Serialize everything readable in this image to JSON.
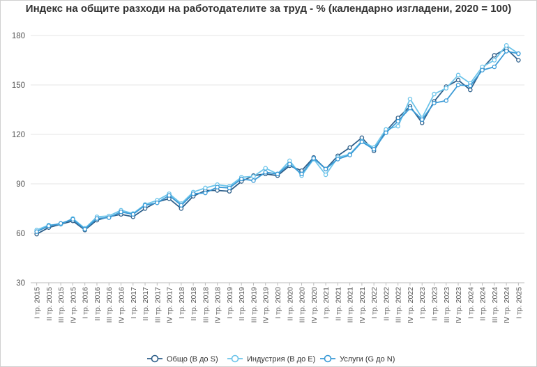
{
  "chart_data": {
    "type": "line",
    "title": "Индекс на общите разходи на работодателите за труд - %  (календарно изгладени, 2020 = 100)",
    "xlabel": "",
    "ylabel": "",
    "ylim": [
      30,
      180
    ],
    "yticks": [
      30,
      60,
      90,
      120,
      150,
      180
    ],
    "grid": true,
    "legend": "bottom",
    "categories": [
      "I тр. 2015",
      "II тр. 2015",
      "III тр. 2015",
      "IV тр. 2015",
      "I тр. 2016",
      "II тр. 2016",
      "III тр. 2016",
      "IV тр. 2016",
      "I тр. 2017",
      "II тр. 2017",
      "III тр. 2017",
      "IV тр. 2017",
      "I тр. 2018",
      "II тр. 2018",
      "III тр. 2018",
      "IV тр. 2018",
      "I тр. 2019",
      "II тр. 2019",
      "III тр. 2019",
      "IV тр. 2019",
      "I тр. 2020",
      "II тр. 2020",
      "III тр. 2020",
      "IV тр. 2020",
      "I тр. 2021",
      "II тр. 2021",
      "III тр. 2021",
      "IV тр. 2021",
      "I тр. 2022",
      "II тр. 2022",
      "III тр. 2022",
      "IV тр. 2022",
      "I тр. 2023",
      "II тр. 2023",
      "III тр. 2023",
      "IV тр. 2023",
      "I тр. 2024",
      "II тр. 2024",
      "III тр. 2024",
      "IV тр. 2024",
      "I тр. 2025"
    ],
    "series": [
      {
        "name": "Общо (B до S)",
        "color": "#2e5f8a",
        "values": [
          59.5,
          63.5,
          65.5,
          67.5,
          62,
          68,
          70,
          71.5,
          70,
          75,
          79,
          81,
          75,
          82.5,
          86,
          86,
          85.5,
          91.5,
          95,
          96,
          95,
          101,
          98,
          106,
          99,
          107,
          112,
          118,
          110,
          122,
          130,
          137,
          127,
          140,
          149,
          153,
          147,
          160,
          168,
          172,
          165
        ]
      },
      {
        "name": "Индустрия (B до E)",
        "color": "#6cc4ea",
        "values": [
          62,
          65,
          65.5,
          69,
          63,
          70,
          70.5,
          74,
          72,
          77.5,
          80,
          84,
          78,
          85,
          87.5,
          89.5,
          88.5,
          94,
          94.5,
          99.5,
          96,
          104,
          95,
          105,
          95.5,
          106,
          108,
          116,
          112,
          123,
          125,
          141.5,
          130,
          144.5,
          148,
          156,
          151,
          161,
          165,
          174,
          169
        ]
      },
      {
        "name": "Услуги (G до N)",
        "color": "#3a9ad6",
        "values": [
          61,
          64.5,
          66,
          68.5,
          62.5,
          69,
          69.5,
          73,
          71.5,
          77,
          78.5,
          83,
          77,
          84,
          84.5,
          88,
          87.5,
          93,
          92,
          97,
          96,
          102,
          96,
          105.5,
          99,
          105,
          107.5,
          115.5,
          111,
          121,
          128,
          136,
          129,
          139,
          140.5,
          150,
          149.5,
          159,
          161,
          170.5,
          169
        ]
      }
    ]
  }
}
